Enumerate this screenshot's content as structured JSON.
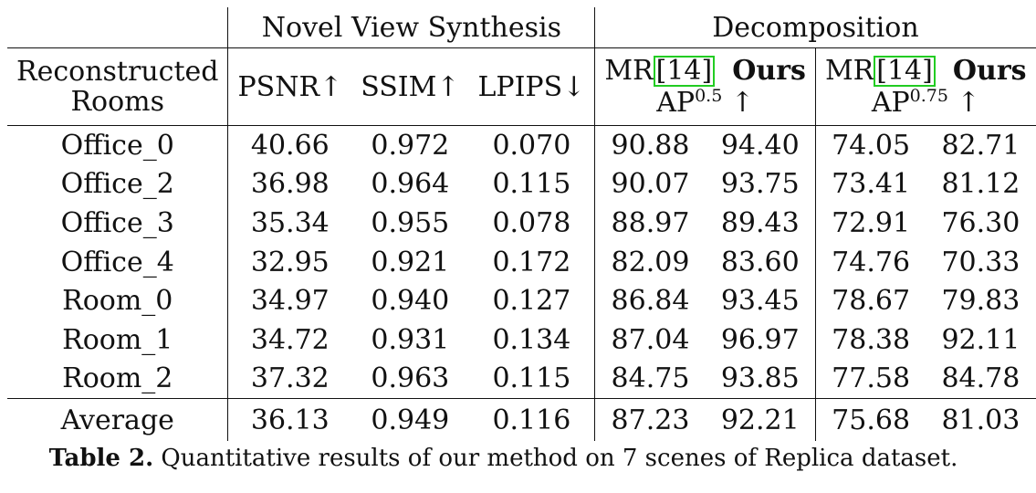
{
  "header": {
    "group_nvs": "Novel View Synthesis",
    "group_decomp": "Decomposition",
    "rowhead_line1": "Reconstructed",
    "rowhead_line2": "Rooms",
    "psnr": "PSNR↑",
    "ssim": "SSIM↑",
    "lpips": "LPIPS↓",
    "mr_prefix": "MR",
    "mr_cite": "[14]",
    "ours": "Ours",
    "ap_base": "AP",
    "ap50_sup": "0.5",
    "ap75_sup": "0.75",
    "arrow_up": "↑"
  },
  "rows": [
    {
      "name": "Office_0",
      "psnr": "40.66",
      "ssim": "0.972",
      "lpips": "0.070",
      "mr50": "90.88",
      "ours50": "94.40",
      "mr75": "74.05",
      "ours75": "82.71"
    },
    {
      "name": "Office_2",
      "psnr": "36.98",
      "ssim": "0.964",
      "lpips": "0.115",
      "mr50": "90.07",
      "ours50": "93.75",
      "mr75": "73.41",
      "ours75": "81.12"
    },
    {
      "name": "Office_3",
      "psnr": "35.34",
      "ssim": "0.955",
      "lpips": "0.078",
      "mr50": "88.97",
      "ours50": "89.43",
      "mr75": "72.91",
      "ours75": "76.30"
    },
    {
      "name": "Office_4",
      "psnr": "32.95",
      "ssim": "0.921",
      "lpips": "0.172",
      "mr50": "82.09",
      "ours50": "83.60",
      "mr75": "74.76",
      "ours75": "70.33"
    },
    {
      "name": "Room_0",
      "psnr": "34.97",
      "ssim": "0.940",
      "lpips": "0.127",
      "mr50": "86.84",
      "ours50": "93.45",
      "mr75": "78.67",
      "ours75": "79.83"
    },
    {
      "name": "Room_1",
      "psnr": "34.72",
      "ssim": "0.931",
      "lpips": "0.134",
      "mr50": "87.04",
      "ours50": "96.97",
      "mr75": "78.38",
      "ours75": "92.11"
    },
    {
      "name": "Room_2",
      "psnr": "37.32",
      "ssim": "0.963",
      "lpips": "0.115",
      "mr50": "84.75",
      "ours50": "93.85",
      "mr75": "77.58",
      "ours75": "84.78"
    }
  ],
  "average": {
    "name": "Average",
    "psnr": "36.13",
    "ssim": "0.949",
    "lpips": "0.116",
    "mr50": "87.23",
    "ours50": "92.21",
    "mr75": "75.68",
    "ours75": "81.03"
  },
  "caption": {
    "label": "Table 2.",
    "text": " Quantitative results of our method on 7 scenes of Replica dataset."
  },
  "colors": {
    "cite_box": "#22cc22",
    "text": "#111111"
  }
}
